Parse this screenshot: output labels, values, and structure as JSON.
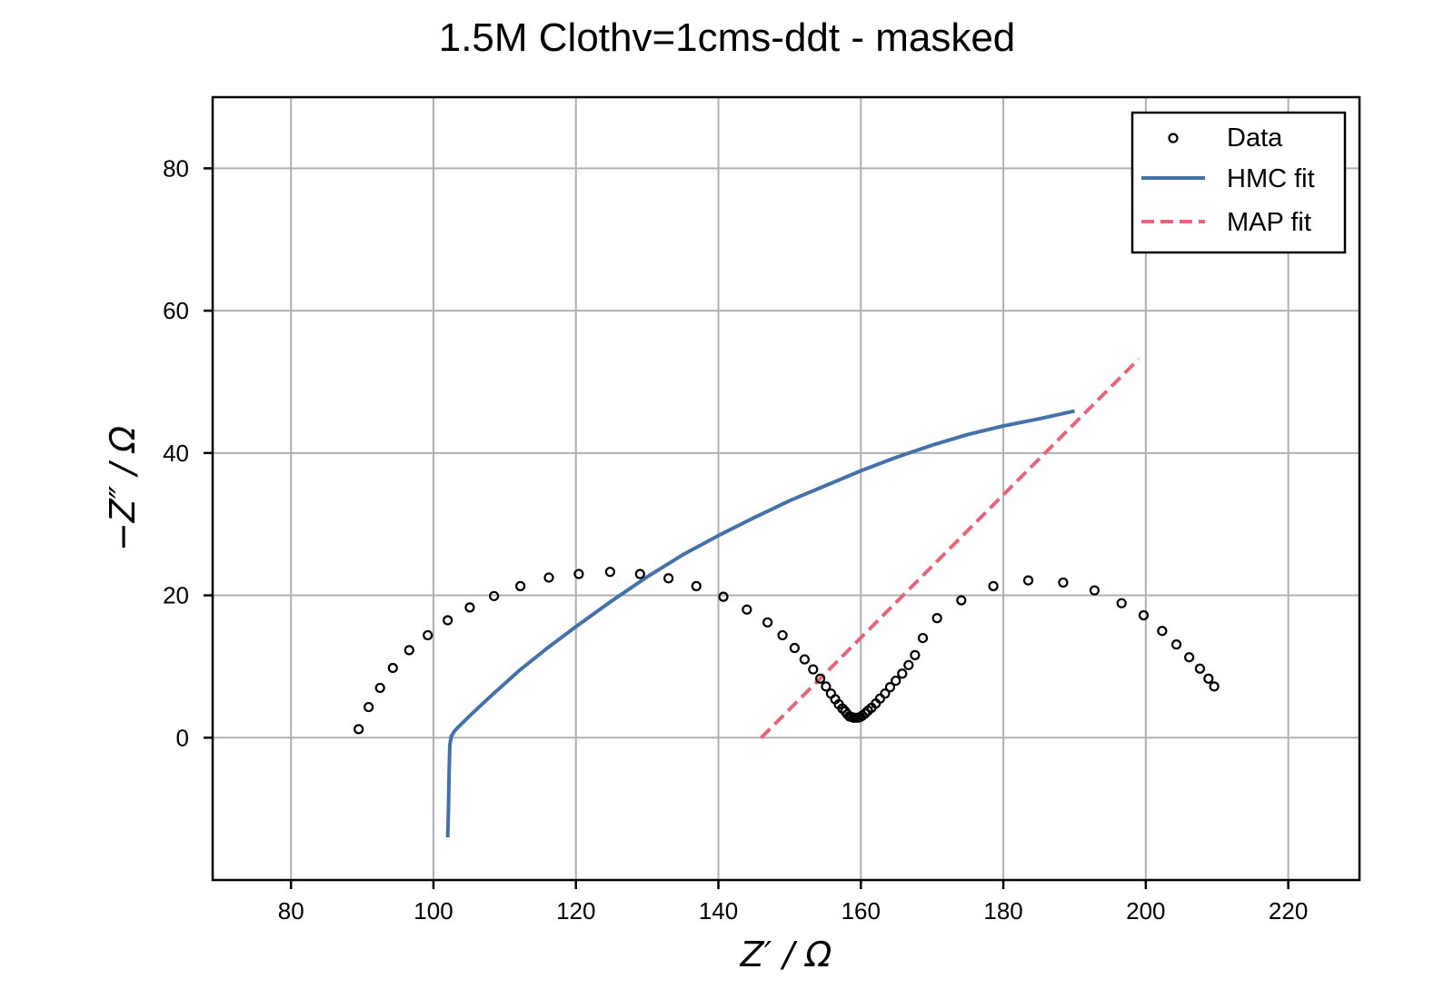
{
  "chart_data": {
    "type": "scatter",
    "title": "1.5M Clothv=1cms-ddt - masked",
    "xlabel": "Z′ / Ω",
    "ylabel": "−Z″ / Ω",
    "xlim": [
      69,
      230
    ],
    "ylim": [
      -20,
      90
    ],
    "xticks": [
      80,
      100,
      120,
      140,
      160,
      180,
      200,
      220
    ],
    "yticks": [
      0,
      20,
      40,
      60,
      80
    ],
    "grid": true,
    "legend_position": "top-right",
    "series": [
      {
        "name": "Data",
        "kind": "markers",
        "color": "#000000",
        "points": [
          [
            89.5,
            1.2
          ],
          [
            90.9,
            4.3
          ],
          [
            92.5,
            7.0
          ],
          [
            94.3,
            9.8
          ],
          [
            96.6,
            12.3
          ],
          [
            99.2,
            14.4
          ],
          [
            102.0,
            16.5
          ],
          [
            105.1,
            18.3
          ],
          [
            108.5,
            19.9
          ],
          [
            112.2,
            21.3
          ],
          [
            116.2,
            22.5
          ],
          [
            120.4,
            23.0
          ],
          [
            124.8,
            23.3
          ],
          [
            129.0,
            23.0
          ],
          [
            133.0,
            22.4
          ],
          [
            136.9,
            21.3
          ],
          [
            140.7,
            19.8
          ],
          [
            144.0,
            18.0
          ],
          [
            146.9,
            16.2
          ],
          [
            149.0,
            14.4
          ],
          [
            150.7,
            12.6
          ],
          [
            152.1,
            11.0
          ],
          [
            153.3,
            9.6
          ],
          [
            154.3,
            8.3
          ],
          [
            155.1,
            7.2
          ],
          [
            155.8,
            6.2
          ],
          [
            156.4,
            5.4
          ],
          [
            156.9,
            4.7
          ],
          [
            157.4,
            4.1
          ],
          [
            157.8,
            3.7
          ],
          [
            158.1,
            3.3
          ],
          [
            158.4,
            3.0
          ],
          [
            158.7,
            2.9
          ],
          [
            159.0,
            2.8
          ],
          [
            159.3,
            2.8
          ],
          [
            159.6,
            2.8
          ],
          [
            159.9,
            2.9
          ],
          [
            160.2,
            3.1
          ],
          [
            160.6,
            3.4
          ],
          [
            161.0,
            3.8
          ],
          [
            161.5,
            4.2
          ],
          [
            162.1,
            4.8
          ],
          [
            162.7,
            5.5
          ],
          [
            163.4,
            6.2
          ],
          [
            164.1,
            7.1
          ],
          [
            164.9,
            8.0
          ],
          [
            165.8,
            9.0
          ],
          [
            166.7,
            10.2
          ],
          [
            167.6,
            11.6
          ],
          [
            168.7,
            14.0
          ],
          [
            170.7,
            16.8
          ],
          [
            174.1,
            19.3
          ],
          [
            178.6,
            21.3
          ],
          [
            183.5,
            22.1
          ],
          [
            188.4,
            21.8
          ],
          [
            192.8,
            20.7
          ],
          [
            196.6,
            18.9
          ],
          [
            199.7,
            17.2
          ],
          [
            202.3,
            15.0
          ],
          [
            204.3,
            13.1
          ],
          [
            206.1,
            11.3
          ],
          [
            207.6,
            9.7
          ],
          [
            208.8,
            8.3
          ],
          [
            209.6,
            7.2
          ]
        ]
      },
      {
        "name": "HMC fit",
        "kind": "line",
        "color": "#4472a8",
        "points": [
          [
            102.0,
            -14.0
          ],
          [
            102.1,
            -10.0
          ],
          [
            102.2,
            -5.0
          ],
          [
            102.3,
            -1.0
          ],
          [
            102.5,
            0.2
          ],
          [
            103.0,
            1.0
          ],
          [
            105.0,
            3.0
          ],
          [
            108.0,
            5.8
          ],
          [
            112.0,
            9.4
          ],
          [
            116.0,
            12.6
          ],
          [
            120.0,
            15.6
          ],
          [
            125.0,
            19.2
          ],
          [
            130.0,
            22.6
          ],
          [
            135.0,
            25.7
          ],
          [
            140.0,
            28.4
          ],
          [
            145.0,
            30.9
          ],
          [
            150.0,
            33.3
          ],
          [
            155.0,
            35.4
          ],
          [
            160.0,
            37.5
          ],
          [
            165.0,
            39.4
          ],
          [
            170.0,
            41.1
          ],
          [
            175.0,
            42.6
          ],
          [
            180.0,
            43.8
          ],
          [
            185.0,
            44.8
          ],
          [
            190.0,
            45.9
          ]
        ]
      },
      {
        "name": "MAP fit",
        "kind": "dashed-line",
        "color": "#e8647a",
        "points": [
          [
            146.0,
            0.0
          ],
          [
            199.0,
            53.2
          ]
        ]
      }
    ]
  }
}
